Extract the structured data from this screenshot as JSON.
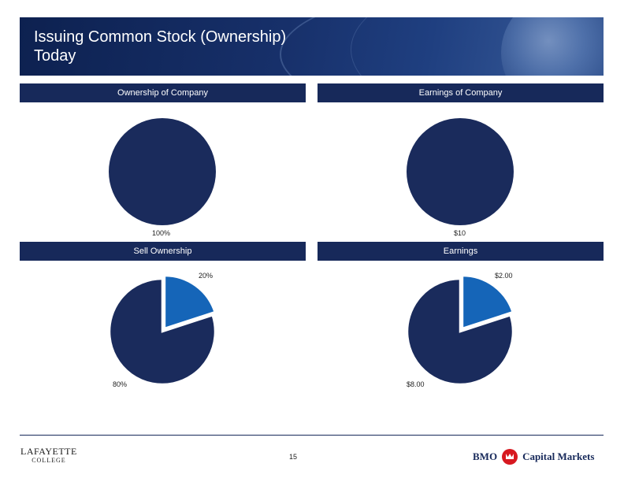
{
  "slide": {
    "title_line1": "Issuing Common Stock (Ownership)",
    "title_line2": "Today",
    "page_number": "15"
  },
  "panels": {
    "ownership_header": "Ownership of Company",
    "earnings_header": "Earnings of Company",
    "sell_header": "Sell Ownership",
    "earnings2_header": "Earnings"
  },
  "chart_data": [
    {
      "type": "pie",
      "title": "Ownership of Company",
      "labels": [
        "100%"
      ],
      "values": [
        100
      ],
      "colors": [
        "#1a2b5c"
      ]
    },
    {
      "type": "pie",
      "title": "Earnings of Company",
      "labels": [
        "$10"
      ],
      "values": [
        10
      ],
      "colors": [
        "#1a2b5c"
      ]
    },
    {
      "type": "pie",
      "title": "Sell Ownership",
      "labels": [
        "20%",
        "80%"
      ],
      "values": [
        20,
        80
      ],
      "colors": [
        "#1565b8",
        "#1a2b5c"
      ]
    },
    {
      "type": "pie",
      "title": "Earnings",
      "labels": [
        "$2.00",
        "$8.00"
      ],
      "values": [
        2,
        8
      ],
      "colors": [
        "#1565b8",
        "#1a2b5c"
      ]
    }
  ],
  "footer": {
    "left_logo_line1": "LAFAYETTE",
    "left_logo_line2": "COLLEGE",
    "right_logo_brand": "BMO",
    "right_logo_text": "Capital Markets"
  },
  "colors": {
    "navy": "#17295a",
    "accent_blue": "#1565b8",
    "brand_red": "#d71920"
  }
}
